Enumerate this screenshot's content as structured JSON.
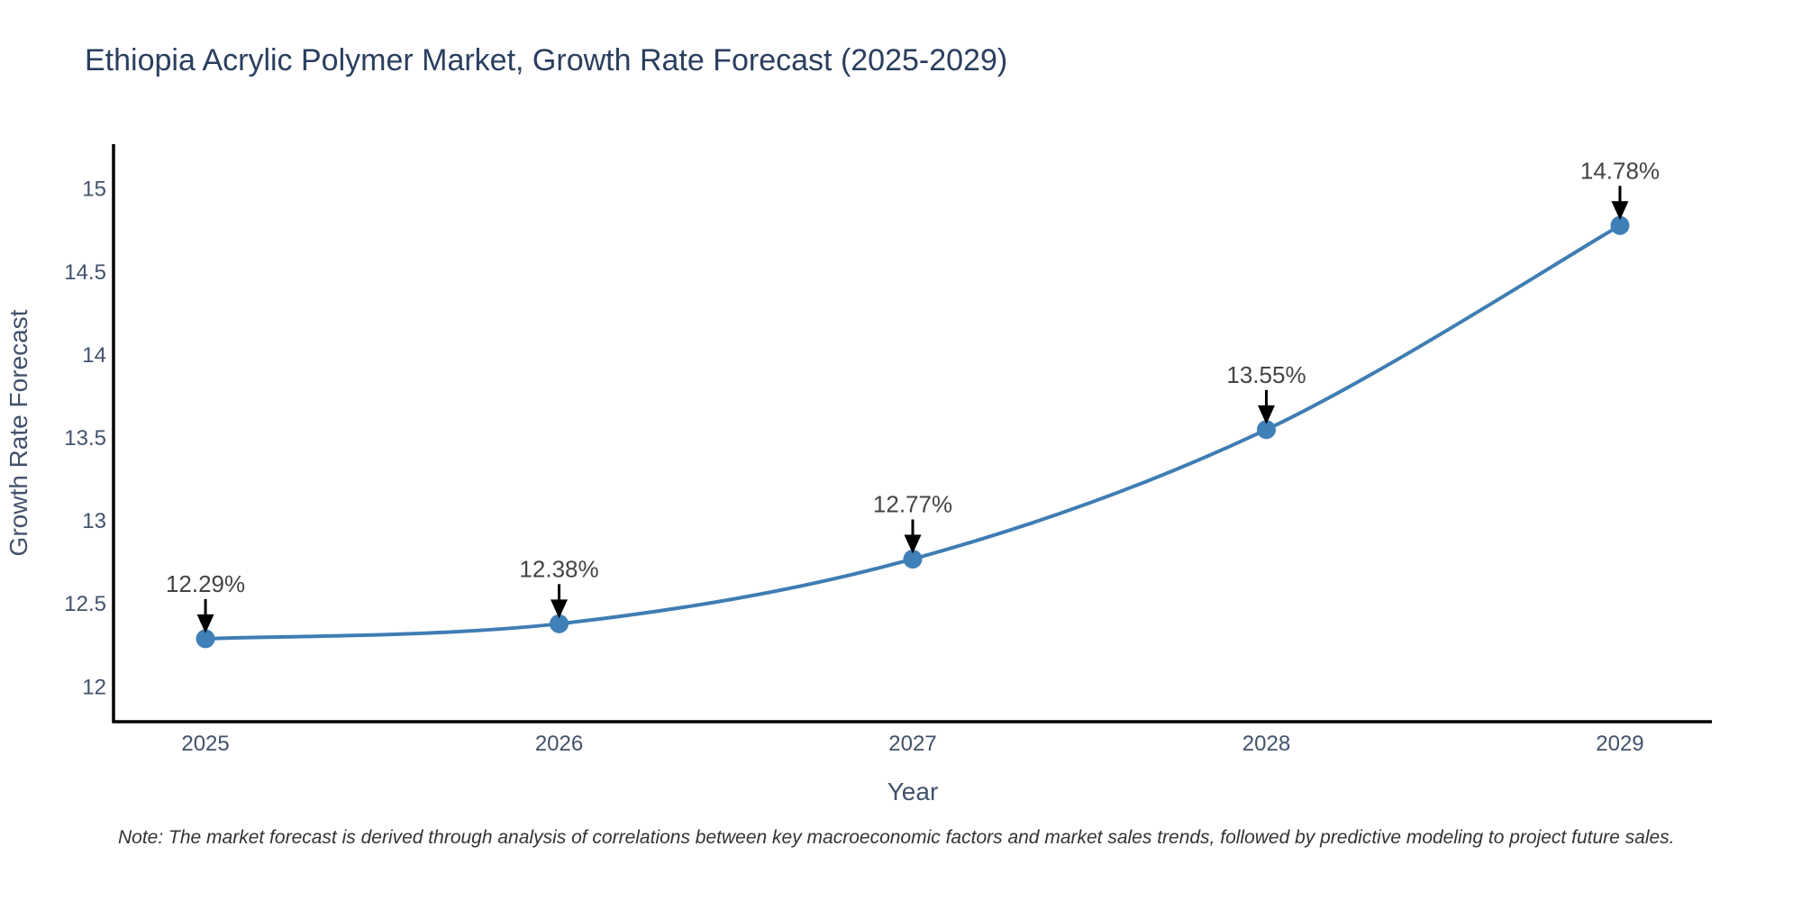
{
  "chart_data": {
    "type": "line",
    "title": "Ethiopia Acrylic Polymer Market, Growth Rate Forecast (2025-2029)",
    "xlabel": "Year",
    "ylabel": "Growth Rate Forecast",
    "x": [
      2025,
      2026,
      2027,
      2028,
      2029
    ],
    "values": [
      12.29,
      12.38,
      12.77,
      13.55,
      14.78
    ],
    "point_labels": [
      "12.29%",
      "12.38%",
      "12.77%",
      "13.55%",
      "14.78%"
    ],
    "x_ticks": [
      "2025",
      "2026",
      "2027",
      "2028",
      "2029"
    ],
    "y_ticks": [
      "12",
      "12.5",
      "13",
      "13.5",
      "14",
      "14.5",
      "15"
    ],
    "y_tick_values": [
      12,
      12.5,
      13,
      13.5,
      14,
      14.5,
      15
    ],
    "xlim": [
      2024.74,
      2029.26
    ],
    "ylim": [
      11.79,
      15.27
    ],
    "line_shape": "spline",
    "grid": false,
    "legend": "none",
    "colors": {
      "line": "#3f7db4",
      "marker": "#3f80b8",
      "axis_line": "#000000",
      "tick_label": "#42526b",
      "axis_title": "#42526b",
      "title": "#2a3f5f",
      "annotation_text": "#444444",
      "arrow": "#000000"
    }
  },
  "footnote": {
    "text": "Note: The market forecast is derived through analysis of correlations between key macroeconomic factors and market sales trends, followed by predictive modeling to project future sales."
  }
}
